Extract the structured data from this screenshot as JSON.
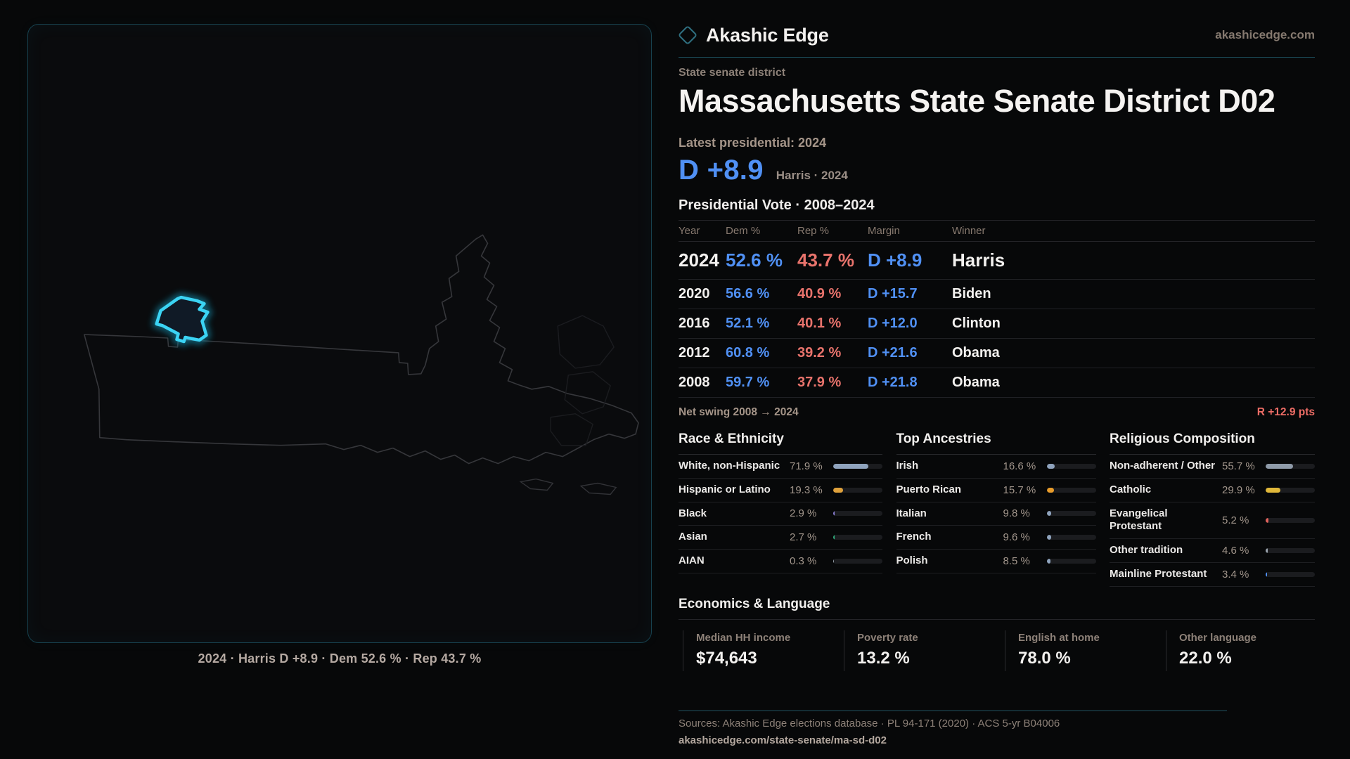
{
  "brand": {
    "name": "Akashic Edge",
    "site": "akashicedge.com",
    "diamond_color": "#2f6f80"
  },
  "header": {
    "kicker": "State senate district",
    "title": "Massachusetts State Senate District D02"
  },
  "latest": {
    "label": "Latest presidential: 2024",
    "margin": "D +8.9",
    "note": "Harris · 2024"
  },
  "colors": {
    "dem_blue": "#5090f4",
    "rep_red": "#e8736c",
    "swing_red": "#ee6d66",
    "district_cyan": "#3bd4f4",
    "teal_divider": "#1d4e5c"
  },
  "table": {
    "title": "Presidential Vote · 2008–2024",
    "columns": {
      "year": "Year",
      "dem": "Dem %",
      "rep": "Rep %",
      "margin": "Margin",
      "winner": "Winner"
    },
    "rows": [
      {
        "year": "2024",
        "dem": "52.6 %",
        "rep": "43.7 %",
        "margin": "D +8.9",
        "winner": "Harris",
        "big": true
      },
      {
        "year": "2020",
        "dem": "56.6 %",
        "rep": "40.9 %",
        "margin": "D +15.7",
        "winner": "Biden"
      },
      {
        "year": "2016",
        "dem": "52.1 %",
        "rep": "40.1 %",
        "margin": "D +12.0",
        "winner": "Clinton"
      },
      {
        "year": "2012",
        "dem": "60.8 %",
        "rep": "39.2 %",
        "margin": "D +21.6",
        "winner": "Obama"
      },
      {
        "year": "2008",
        "dem": "59.7 %",
        "rep": "37.9 %",
        "margin": "D +21.8",
        "winner": "Obama"
      }
    ],
    "net_swing_label": "Net swing 2008 → 2024",
    "net_swing_value": "R +12.9 pts"
  },
  "demographics": [
    {
      "title": "Race & Ethnicity",
      "rows": [
        {
          "label": "White, non-Hispanic",
          "display": "71.9 %",
          "value": 71.9,
          "color": "#8fa3bd"
        },
        {
          "label": "Hispanic or Latino",
          "display": "19.3 %",
          "value": 19.3,
          "color": "#dfa13c"
        },
        {
          "label": "Black",
          "display": "2.9 %",
          "value": 2.9,
          "color": "#8b7fd6"
        },
        {
          "label": "Asian",
          "display": "2.7 %",
          "value": 2.7,
          "color": "#2fae7d"
        },
        {
          "label": "AIAN",
          "display": "0.3 %",
          "value": 0.3,
          "color": "#9aa3ad"
        }
      ]
    },
    {
      "title": "Top Ancestries",
      "rows": [
        {
          "label": "Irish",
          "display": "16.6 %",
          "value": 16.6,
          "color": "#8fa3bd"
        },
        {
          "label": "Puerto Rican",
          "display": "15.7 %",
          "value": 15.7,
          "color": "#e89c2b"
        },
        {
          "label": "Italian",
          "display": "9.8 %",
          "value": 9.8,
          "color": "#8fa3bd"
        },
        {
          "label": "French",
          "display": "9.6 %",
          "value": 9.6,
          "color": "#8fa3bd"
        },
        {
          "label": "Polish",
          "display": "8.5 %",
          "value": 8.5,
          "color": "#8fa3bd"
        }
      ]
    },
    {
      "title": "Religious Composition",
      "rows": [
        {
          "label": "Non-adherent / Other",
          "display": "55.7 %",
          "value": 55.7,
          "color": "#8e9aa8"
        },
        {
          "label": "Catholic",
          "display": "29.9 %",
          "value": 29.9,
          "color": "#e0b83a"
        },
        {
          "label": "Evangelical Protestant",
          "display": "5.2 %",
          "value": 5.2,
          "color": "#e0625c"
        },
        {
          "label": "Other tradition",
          "display": "4.6 %",
          "value": 4.6,
          "color": "#9aa3ad"
        },
        {
          "label": "Mainline Protestant",
          "display": "3.4 %",
          "value": 3.4,
          "color": "#5090f4"
        }
      ]
    }
  ],
  "economics": {
    "title": "Economics & Language",
    "stats": [
      {
        "label": "Median HH income",
        "value": "$74,643"
      },
      {
        "label": "Poverty rate",
        "value": "13.2 %"
      },
      {
        "label": "English at home",
        "value": "78.0 %"
      },
      {
        "label": "Other language",
        "value": "22.0 %"
      }
    ]
  },
  "map": {
    "caption": "2024 · Harris D +8.9 · Dem 52.6 % · Rep 43.7 %"
  },
  "footer": {
    "sources": "Sources: Akashic Edge elections database · PL 94-171 (2020) · ACS 5-yr B04006",
    "permalink": "akashicedge.com/state-senate/ma-sd-d02"
  },
  "chart_data": [
    {
      "type": "table",
      "title": "Presidential Vote · 2008–2024",
      "columns": [
        "Year",
        "Dem %",
        "Rep %",
        "Margin",
        "Winner"
      ],
      "rows": [
        [
          2024,
          52.6,
          43.7,
          "D +8.9",
          "Harris"
        ],
        [
          2020,
          56.6,
          40.9,
          "D +15.7",
          "Biden"
        ],
        [
          2016,
          52.1,
          40.1,
          "D +12.0",
          "Clinton"
        ],
        [
          2012,
          60.8,
          39.2,
          "D +21.6",
          "Obama"
        ],
        [
          2008,
          59.7,
          37.9,
          "D +21.8",
          "Obama"
        ]
      ],
      "annotations": [
        "Net swing 2008 → 2024: R +12.9 pts",
        "Latest presidential 2024: D +8.9 (Harris)"
      ]
    },
    {
      "type": "bar",
      "title": "Race & Ethnicity",
      "unit": "%",
      "categories": [
        "White, non-Hispanic",
        "Hispanic or Latino",
        "Black",
        "Asian",
        "AIAN"
      ],
      "values": [
        71.9,
        19.3,
        2.9,
        2.7,
        0.3
      ],
      "xlim": [
        0,
        100
      ]
    },
    {
      "type": "bar",
      "title": "Top Ancestries",
      "unit": "%",
      "categories": [
        "Irish",
        "Puerto Rican",
        "Italian",
        "French",
        "Polish"
      ],
      "values": [
        16.6,
        15.7,
        9.8,
        9.6,
        8.5
      ],
      "xlim": [
        0,
        100
      ]
    },
    {
      "type": "bar",
      "title": "Religious Composition",
      "unit": "%",
      "categories": [
        "Non-adherent / Other",
        "Catholic",
        "Evangelical Protestant",
        "Other tradition",
        "Mainline Protestant"
      ],
      "values": [
        55.7,
        29.9,
        5.2,
        4.6,
        3.4
      ],
      "xlim": [
        0,
        100
      ]
    },
    {
      "type": "table",
      "title": "Economics & Language",
      "columns": [
        "Median HH income",
        "Poverty rate",
        "English at home",
        "Other language"
      ],
      "rows": [
        [
          "$74,643",
          "13.2 %",
          "78.0 %",
          "22.0 %"
        ]
      ]
    }
  ]
}
